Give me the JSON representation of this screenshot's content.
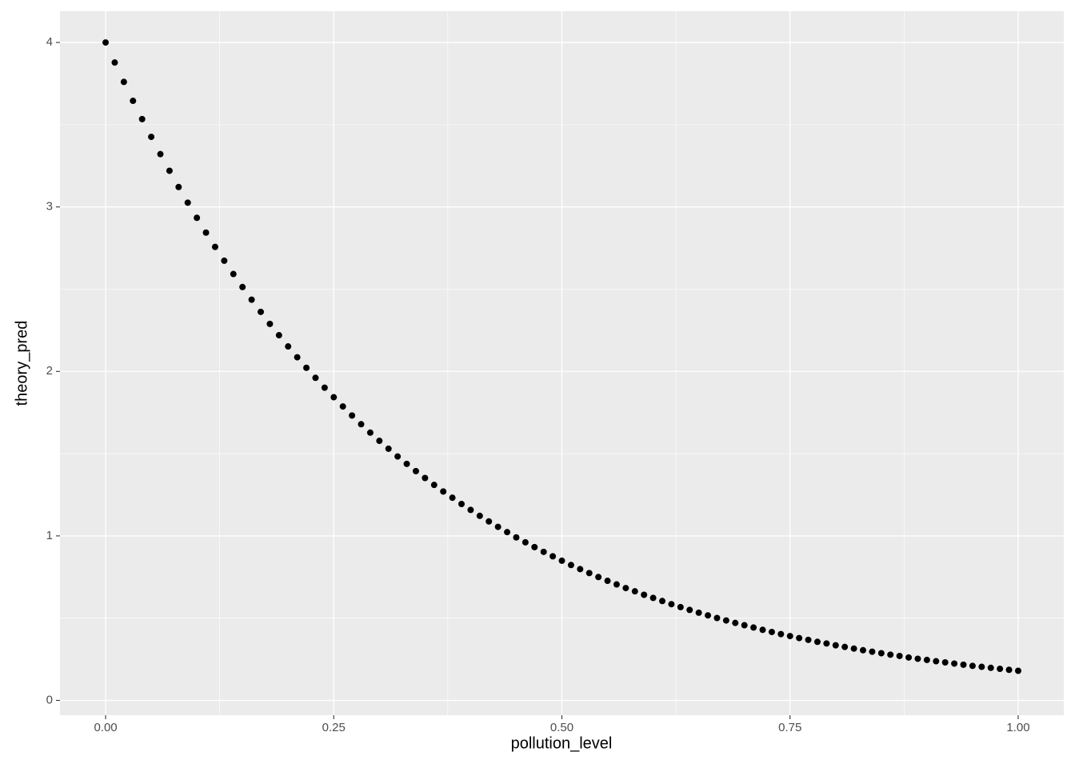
{
  "chart_data": {
    "type": "scatter",
    "x_label": "pollution_level",
    "y_label": "theory_pred",
    "x": [
      0,
      0.01,
      0.02,
      0.03,
      0.04,
      0.05,
      0.06,
      0.07,
      0.08,
      0.09,
      0.1,
      0.11,
      0.12,
      0.13,
      0.14,
      0.15,
      0.16,
      0.17,
      0.18,
      0.19,
      0.2,
      0.21,
      0.22,
      0.23,
      0.24,
      0.25,
      0.26,
      0.27,
      0.28,
      0.29,
      0.3,
      0.31,
      0.32,
      0.33,
      0.34,
      0.35,
      0.36,
      0.37,
      0.38,
      0.39,
      0.4,
      0.41,
      0.42,
      0.43,
      0.44,
      0.45,
      0.46,
      0.47,
      0.48,
      0.49,
      0.5,
      0.51,
      0.52,
      0.53,
      0.54,
      0.55,
      0.56,
      0.57,
      0.58,
      0.59,
      0.6,
      0.61,
      0.62,
      0.63,
      0.64,
      0.65,
      0.66,
      0.67,
      0.68,
      0.69,
      0.7,
      0.71,
      0.72,
      0.73,
      0.74,
      0.75,
      0.76,
      0.77,
      0.78,
      0.79,
      0.8,
      0.81,
      0.82,
      0.83,
      0.84,
      0.85,
      0.86,
      0.87,
      0.88,
      0.89,
      0.9,
      0.91,
      0.92,
      0.93,
      0.94,
      0.95,
      0.96,
      0.97,
      0.98,
      0.99,
      1
    ],
    "values": [
      4,
      3.878,
      3.76,
      3.645,
      3.534,
      3.426,
      3.321,
      3.22,
      3.121,
      3.026,
      2.934,
      2.844,
      2.757,
      2.673,
      2.592,
      2.513,
      2.436,
      2.362,
      2.289,
      2.22,
      2.152,
      2.086,
      2.022,
      1.961,
      1.901,
      1.843,
      1.787,
      1.732,
      1.679,
      1.628,
      1.578,
      1.53,
      1.483,
      1.438,
      1.394,
      1.352,
      1.31,
      1.27,
      1.232,
      1.194,
      1.158,
      1.122,
      1.088,
      1.055,
      1.023,
      0.991,
      0.961,
      0.932,
      0.903,
      0.876,
      0.849,
      0.823,
      0.798,
      0.774,
      0.75,
      0.727,
      0.705,
      0.683,
      0.663,
      0.642,
      0.623,
      0.604,
      0.585,
      0.567,
      0.55,
      0.533,
      0.517,
      0.501,
      0.486,
      0.471,
      0.457,
      0.443,
      0.429,
      0.416,
      0.403,
      0.391,
      0.379,
      0.368,
      0.356,
      0.346,
      0.335,
      0.325,
      0.315,
      0.305,
      0.296,
      0.287,
      0.278,
      0.27,
      0.261,
      0.253,
      0.246,
      0.238,
      0.231,
      0.224,
      0.217,
      0.21,
      0.204,
      0.198,
      0.192,
      0.186,
      0.18
    ],
    "color": "#000000",
    "xlim": [
      -0.05,
      1.05
    ],
    "ylim": [
      -0.09,
      4.19
    ],
    "xticks": [
      {
        "value": 0,
        "label": "0.00"
      },
      0.25,
      {
        "value": 0.5,
        "label": "0.50"
      },
      0.75,
      {
        "value": 1,
        "label": "1.00"
      }
    ],
    "yticks": [
      0,
      1,
      2,
      3,
      4
    ],
    "grid": true
  }
}
